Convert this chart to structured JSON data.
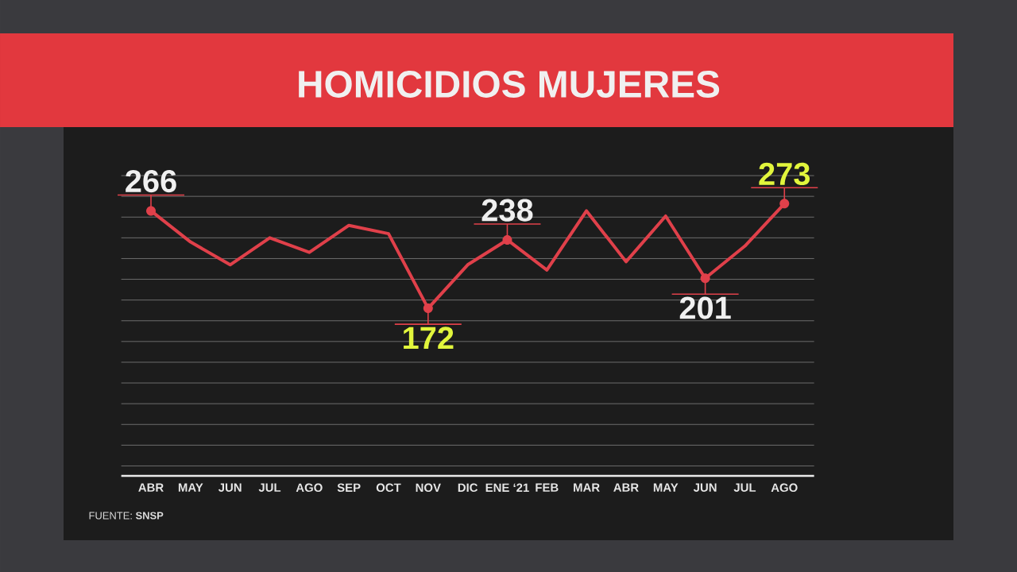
{
  "chart_data": {
    "type": "line",
    "title": "HOMICIDIOS MUJERES",
    "categories": [
      "ABR",
      "MAY",
      "JUN",
      "JUL",
      "AGO",
      "SEP",
      "OCT",
      "NOV",
      "DIC",
      "ENE ‘21",
      "FEB",
      "MAR",
      "ABR",
      "MAY",
      "JUN",
      "JUL",
      "AGO"
    ],
    "series": [
      {
        "color": "#e0404a",
        "values": [
          266,
          236,
          214,
          240,
          226,
          252,
          244,
          172,
          214,
          238,
          209,
          266,
          217,
          261,
          201,
          232,
          273
        ],
        "value_labels": [
          "266",
          null,
          null,
          null,
          null,
          null,
          null,
          "172",
          null,
          "238",
          null,
          null,
          null,
          null,
          "201",
          null,
          "273"
        ]
      }
    ],
    "grid": "y",
    "line_style": "solid",
    "tick_labels": "x",
    "annotations": [
      "FUENTE: **SNSP**"
    ]
  }
}
